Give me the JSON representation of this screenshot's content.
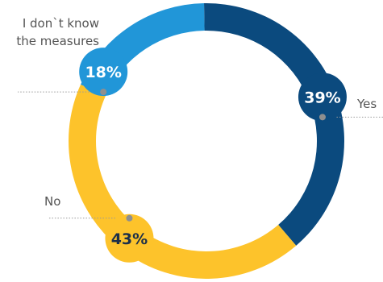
{
  "chart_data": {
    "type": "pie",
    "donut": true,
    "categories": [
      "Yes",
      "No",
      "I don`t know the measures"
    ],
    "category_lines": [
      [
        "Yes"
      ],
      [
        "No"
      ],
      [
        "I don`t know",
        "the measures"
      ]
    ],
    "values": [
      39,
      43,
      18
    ],
    "value_labels": [
      "39%",
      "43%",
      "18%"
    ],
    "colors": [
      "#0b4a7e",
      "#fdc32b",
      "#2196d8"
    ],
    "title": "",
    "legend": "none"
  }
}
